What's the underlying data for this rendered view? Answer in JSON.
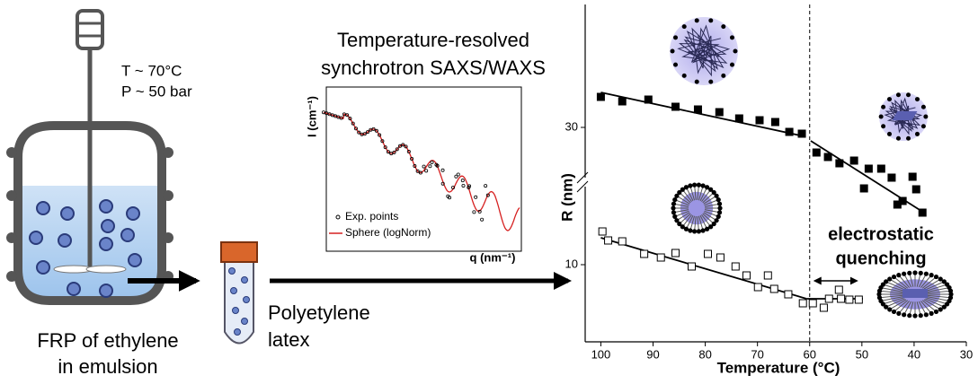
{
  "reactor": {
    "conditions": [
      "T ~ 70°C",
      "P ~ 50 bar"
    ],
    "caption": [
      "FRP of ethylene",
      "in emulsion"
    ]
  },
  "product": {
    "caption": [
      "Polyetylene",
      "latex"
    ]
  },
  "measurement": {
    "title": [
      "Temperature-resolved",
      "synchrotron SAXS/WAXS"
    ],
    "inset": {
      "y_label": "I (cm⁻¹)",
      "x_label": "q (nm⁻¹)",
      "legend": [
        "Exp. points",
        "Sphere (logNorm)"
      ]
    }
  },
  "chart_data": {
    "type": "scatter",
    "x_label": "Temperature (°C)",
    "y_label": "R (nm)",
    "xlim": [
      103,
      30
    ],
    "xticks": [
      100,
      90,
      80,
      70,
      60,
      50,
      40,
      30
    ],
    "ylim": [
      5.7,
      24.5
    ],
    "yticks": [
      10
    ],
    "y2lim": [
      6.1,
      43.7
    ],
    "y2ticks": [
      30
    ],
    "axis_break": true,
    "vline": 60,
    "annotation": [
      "electrostatic",
      "quenching"
    ],
    "series": [
      {
        "color": "#000000",
        "marker": "filled",
        "axis": "y2",
        "x": [
          100,
          95.9,
          90.9,
          85.7,
          81.4,
          77.3,
          73.5,
          69.6,
          66.6,
          63.9,
          61.5,
          58.7,
          56.5,
          54.3,
          51.5,
          48.7,
          46.3,
          49.6,
          44.3,
          40.3,
          39.6,
          43.2,
          42.2,
          38.4
        ],
        "values": [
          33.4,
          32.9,
          33.1,
          32.3,
          32.0,
          31.7,
          31.0,
          30.8,
          30.6,
          29.5,
          29.3,
          27.2,
          26.7,
          26.0,
          26.3,
          25.4,
          25.4,
          23.2,
          24.4,
          24.5,
          23.1,
          21.4,
          21.8,
          20.5
        ]
      },
      {
        "color": "#000000",
        "marker": "open",
        "x": [
          99.7,
          98.6,
          95.9,
          91.7,
          88.5,
          85.7,
          82.6,
          79.5,
          77.1,
          74.2,
          72.1,
          69.9,
          68.0,
          66.8,
          64.1,
          61.3,
          59.4,
          57.3,
          56.3,
          54.4,
          54.0,
          52.4,
          50.6
        ],
        "values": [
          11.85,
          11.35,
          11.3,
          10.6,
          10.4,
          10.65,
          9.9,
          10.6,
          10.4,
          9.9,
          9.4,
          8.75,
          9.4,
          8.65,
          8.35,
          7.85,
          7.85,
          7.6,
          8.1,
          8.6,
          8.1,
          8.05,
          8.05
        ]
      }
    ],
    "fits": [
      {
        "axis": "y2",
        "x": [
          100,
          61
        ],
        "values": [
          33.9,
          29.0
        ]
      },
      {
        "axis": "y2",
        "x": [
          59.8,
          38.1
        ],
        "values": [
          28.5,
          20.5
        ]
      },
      {
        "x": [
          100,
          60.6
        ],
        "values": [
          11.5,
          8.1
        ]
      },
      {
        "x": [
          60.6,
          49.8
        ],
        "values": [
          8.1,
          8.1
        ]
      }
    ]
  }
}
